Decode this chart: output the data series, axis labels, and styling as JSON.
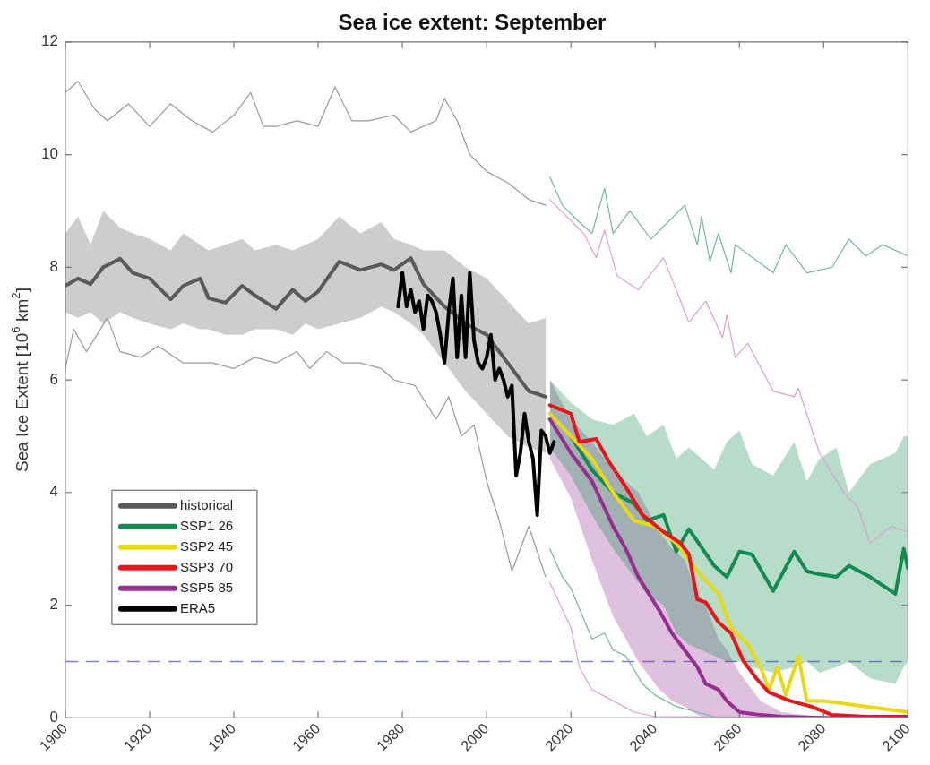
{
  "chart_data": {
    "type": "line",
    "title": "Sea ice extent: September",
    "ylabel": "Sea Ice Extent [10$^{6}$ km$^{2}$]",
    "xlim": [
      1900,
      2100
    ],
    "xticks": [
      1900,
      1920,
      1940,
      1960,
      1980,
      2000,
      2020,
      2040,
      2060,
      2080,
      2100
    ],
    "ylim": [
      0,
      12
    ],
    "yticks": [
      0,
      2,
      4,
      6,
      8,
      10,
      12
    ],
    "grid": false,
    "legend": "bottom left",
    "marker": "none",
    "line_style": "solid",
    "ref_lines": [
      {
        "axis": "y",
        "value": 1,
        "color": "#7b7be0",
        "line_style": "dashed"
      }
    ],
    "series": [
      {
        "name": "historical",
        "color": "#5a5a5a",
        "x": [
          1900,
          1903,
          1906,
          1909,
          1913,
          1916,
          1920,
          1925,
          1928,
          1932,
          1934,
          1938,
          1942,
          1945,
          1950,
          1954,
          1957,
          1960,
          1965,
          1970,
          1975,
          1978,
          1982,
          1985,
          1990,
          1995,
          2000,
          2005,
          2010,
          2014
        ],
        "values": [
          7.67,
          7.8,
          7.7,
          8.0,
          8.15,
          7.9,
          7.8,
          7.43,
          7.67,
          7.8,
          7.45,
          7.37,
          7.67,
          7.5,
          7.26,
          7.6,
          7.4,
          7.57,
          8.1,
          7.95,
          8.05,
          7.95,
          8.16,
          7.7,
          7.3,
          7.0,
          6.8,
          6.3,
          5.8,
          5.7
        ],
        "upper": [
          8.6,
          8.9,
          8.4,
          9.0,
          8.7,
          8.6,
          8.5,
          8.3,
          8.6,
          8.4,
          8.3,
          8.4,
          8.5,
          8.3,
          8.4,
          8.3,
          8.4,
          8.5,
          8.9,
          8.6,
          8.8,
          8.5,
          8.4,
          8.3,
          8.3,
          8.0,
          7.8,
          7.4,
          7.0,
          7.1
        ],
        "lower": [
          7.2,
          7.1,
          7.2,
          7.0,
          7.2,
          7.1,
          7.0,
          6.9,
          7.0,
          6.9,
          6.9,
          6.8,
          6.8,
          6.9,
          6.9,
          6.8,
          7.0,
          6.9,
          7.0,
          7.1,
          7.3,
          7.2,
          7.0,
          6.8,
          6.3,
          5.8,
          5.4,
          5.0,
          4.8,
          4.7
        ]
      },
      {
        "color": "#999999",
        "x": [
          1900,
          1903,
          1907,
          1910,
          1915,
          1920,
          1925,
          1930,
          1935,
          1940,
          1944,
          1947,
          1950,
          1955,
          1960,
          1964,
          1968,
          1972,
          1978,
          1982,
          1988,
          1990,
          1993,
          1996,
          2000,
          2005,
          2010,
          2014
        ],
        "values": [
          11.1,
          11.3,
          10.8,
          10.6,
          10.9,
          10.5,
          10.9,
          10.6,
          10.4,
          10.7,
          11.1,
          10.5,
          10.5,
          10.6,
          10.5,
          11.2,
          10.6,
          10.6,
          10.7,
          10.4,
          10.6,
          11.0,
          10.6,
          10.0,
          9.7,
          9.5,
          9.2,
          9.1
        ]
      },
      {
        "color": "#999999",
        "x": [
          1900,
          1902,
          1905,
          1910,
          1913,
          1918,
          1922,
          1928,
          1935,
          1940,
          1945,
          1950,
          1955,
          1958,
          1962,
          1966,
          1970,
          1975,
          1978,
          1983,
          1988,
          1991,
          1994,
          1997,
          2000,
          2003,
          2006,
          2010,
          2014
        ],
        "values": [
          6.2,
          6.9,
          6.5,
          7.1,
          6.5,
          6.4,
          6.6,
          6.3,
          6.3,
          6.2,
          6.4,
          6.3,
          6.5,
          6.2,
          6.5,
          6.3,
          6.3,
          6.2,
          6.0,
          5.9,
          5.3,
          5.7,
          5.0,
          5.2,
          4.2,
          3.5,
          2.6,
          3.4,
          2.5
        ]
      },
      {
        "name": "SSP1 26",
        "color": "#138a4f",
        "x": [
          2015,
          2020,
          2025,
          2030,
          2035,
          2038,
          2042,
          2045,
          2048,
          2054,
          2057,
          2060,
          2063,
          2068,
          2073,
          2076,
          2079,
          2083,
          2086,
          2091,
          2097,
          2099,
          2100
        ],
        "values": [
          null,
          5.0,
          4.4,
          4.0,
          3.8,
          3.5,
          3.6,
          2.95,
          3.35,
          2.7,
          2.5,
          2.95,
          2.9,
          2.25,
          2.95,
          2.6,
          2.55,
          2.5,
          2.7,
          2.5,
          2.2,
          3.0,
          2.65
        ],
        "upper": [
          6.0,
          5.6,
          5.3,
          5.2,
          5.4,
          5.0,
          5.2,
          4.6,
          4.8,
          4.4,
          4.9,
          5.1,
          4.5,
          4.3,
          4.9,
          4.2,
          4.6,
          4.8,
          4.0,
          4.5,
          4.7,
          5.0,
          5.0
        ],
        "lower": [
          4.8,
          4.3,
          3.6,
          3.0,
          2.5,
          2.2,
          2.0,
          1.5,
          1.3,
          1.1,
          1.0,
          1.0,
          0.9,
          0.8,
          0.9,
          1.0,
          0.8,
          0.9,
          1.0,
          0.7,
          0.6,
          0.9,
          1.0
        ]
      },
      {
        "color": "#6fb89a",
        "x": [
          2015,
          2018,
          2022,
          2025,
          2028,
          2030,
          2034,
          2039,
          2047,
          2050,
          2051,
          2053,
          2055,
          2058,
          2059,
          2068,
          2071,
          2076,
          2082,
          2086,
          2090,
          2094,
          2100
        ],
        "values": [
          9.6,
          9.1,
          8.8,
          8.6,
          9.4,
          8.6,
          9.0,
          8.5,
          9.1,
          8.4,
          8.9,
          8.1,
          8.6,
          7.9,
          8.4,
          7.9,
          8.4,
          7.9,
          8.0,
          8.5,
          8.2,
          8.4,
          8.2
        ]
      },
      {
        "color": "#6fb89a",
        "x": [
          2015,
          2018,
          2020,
          2025,
          2028,
          2030,
          2033,
          2037,
          2040,
          2045,
          2050,
          2055,
          2060
        ],
        "values": [
          3.0,
          2.5,
          2.3,
          1.4,
          1.5,
          1.2,
          1.1,
          0.6,
          0.4,
          0.2,
          0.1,
          0,
          0
        ]
      },
      {
        "name": "SSP2 45",
        "color": "#e8d81a",
        "x": [
          2015,
          2020,
          2025,
          2030,
          2035,
          2040,
          2045,
          2050,
          2055,
          2058,
          2062,
          2065,
          2067,
          2069,
          2071,
          2074,
          2076,
          2080,
          2085,
          2090,
          2095,
          2100
        ],
        "values": [
          5.4,
          5.0,
          4.6,
          4.0,
          3.5,
          3.4,
          3.1,
          2.6,
          2.2,
          1.6,
          1.3,
          0.9,
          0.5,
          0.9,
          0.4,
          1.1,
          0.3,
          0.3,
          0.25,
          0.2,
          0.15,
          0.1
        ]
      },
      {
        "name": "SSP3 70",
        "color": "#e8161b",
        "x": [
          2015,
          2020,
          2022,
          2026,
          2029,
          2033,
          2037,
          2042,
          2046,
          2048,
          2050,
          2052,
          2055,
          2058,
          2061,
          2064,
          2067,
          2072,
          2077,
          2082,
          2090,
          2100
        ],
        "values": [
          5.55,
          5.4,
          4.9,
          4.95,
          4.55,
          4.1,
          3.6,
          3.3,
          3.1,
          2.9,
          2.1,
          2.05,
          1.7,
          1.5,
          1.0,
          0.7,
          0.45,
          0.3,
          0.2,
          0.05,
          0.02,
          0.02
        ]
      },
      {
        "name": "SSP5 85",
        "color": "#962e91",
        "x": [
          2015,
          2020,
          2025,
          2030,
          2033,
          2036,
          2041,
          2044,
          2047,
          2050,
          2052,
          2055,
          2057,
          2060,
          2065,
          2070,
          2080,
          2090,
          2100
        ],
        "values": [
          5.3,
          4.7,
          4.2,
          3.4,
          3.0,
          2.5,
          1.9,
          1.5,
          1.2,
          0.9,
          0.6,
          0.5,
          0.3,
          0.1,
          0.05,
          0.02,
          0,
          0,
          0
        ],
        "upper": [
          6.0,
          5.3,
          4.9,
          4.4,
          4.2,
          4.0,
          3.3,
          3.0,
          2.8,
          2.2,
          2.0,
          1.4,
          1.2,
          0.8,
          0.3,
          0.1,
          0,
          0,
          0
        ],
        "lower": [
          4.6,
          3.9,
          2.8,
          1.8,
          1.4,
          1.0,
          0.5,
          0.3,
          0.2,
          0.05,
          0,
          0,
          0,
          0,
          0,
          0,
          0,
          0,
          0
        ]
      },
      {
        "color": "#d9a0d5",
        "x": [
          2015,
          2023,
          2026,
          2028,
          2031,
          2036,
          2042,
          2048,
          2052,
          2056,
          2057,
          2059,
          2062,
          2068,
          2073,
          2074,
          2079,
          2085,
          2088,
          2091,
          2096,
          2100
        ],
        "values": [
          9.2,
          8.6,
          8.17,
          8.66,
          7.84,
          7.6,
          8.17,
          7.02,
          7.4,
          6.75,
          7.15,
          6.4,
          6.65,
          5.8,
          5.7,
          5.85,
          4.7,
          3.97,
          3.75,
          3.1,
          3.4,
          3.3
        ]
      },
      {
        "color": "#d9a0d5",
        "x": [
          2015,
          2020,
          2022,
          2025,
          2030,
          2035,
          2040,
          2100
        ],
        "values": [
          2.4,
          1.6,
          0.9,
          0.5,
          0.3,
          0.1,
          0.02,
          0
        ]
      },
      {
        "name": "ERA5",
        "color": "#000000",
        "x": [
          1979,
          1980,
          1981,
          1982,
          1983,
          1984,
          1985,
          1986,
          1987,
          1988,
          1989,
          1990,
          1991,
          1992,
          1993,
          1994,
          1995,
          1996,
          1997,
          1998,
          1999,
          2000,
          2001,
          2002,
          2003,
          2004,
          2005,
          2006,
          2007,
          2008,
          2009,
          2010,
          2011,
          2012,
          2013,
          2014,
          2015,
          2016
        ],
        "values": [
          7.3,
          7.9,
          7.3,
          7.6,
          7.2,
          7.4,
          6.9,
          7.5,
          7.4,
          7.2,
          6.8,
          6.3,
          7.2,
          7.8,
          6.4,
          7.5,
          6.4,
          7.9,
          6.7,
          6.3,
          6.2,
          6.4,
          6.8,
          6.0,
          6.2,
          6.0,
          5.7,
          5.9,
          4.3,
          4.7,
          5.4,
          4.9,
          4.6,
          3.6,
          5.1,
          5.0,
          4.7,
          4.9
        ]
      }
    ]
  }
}
